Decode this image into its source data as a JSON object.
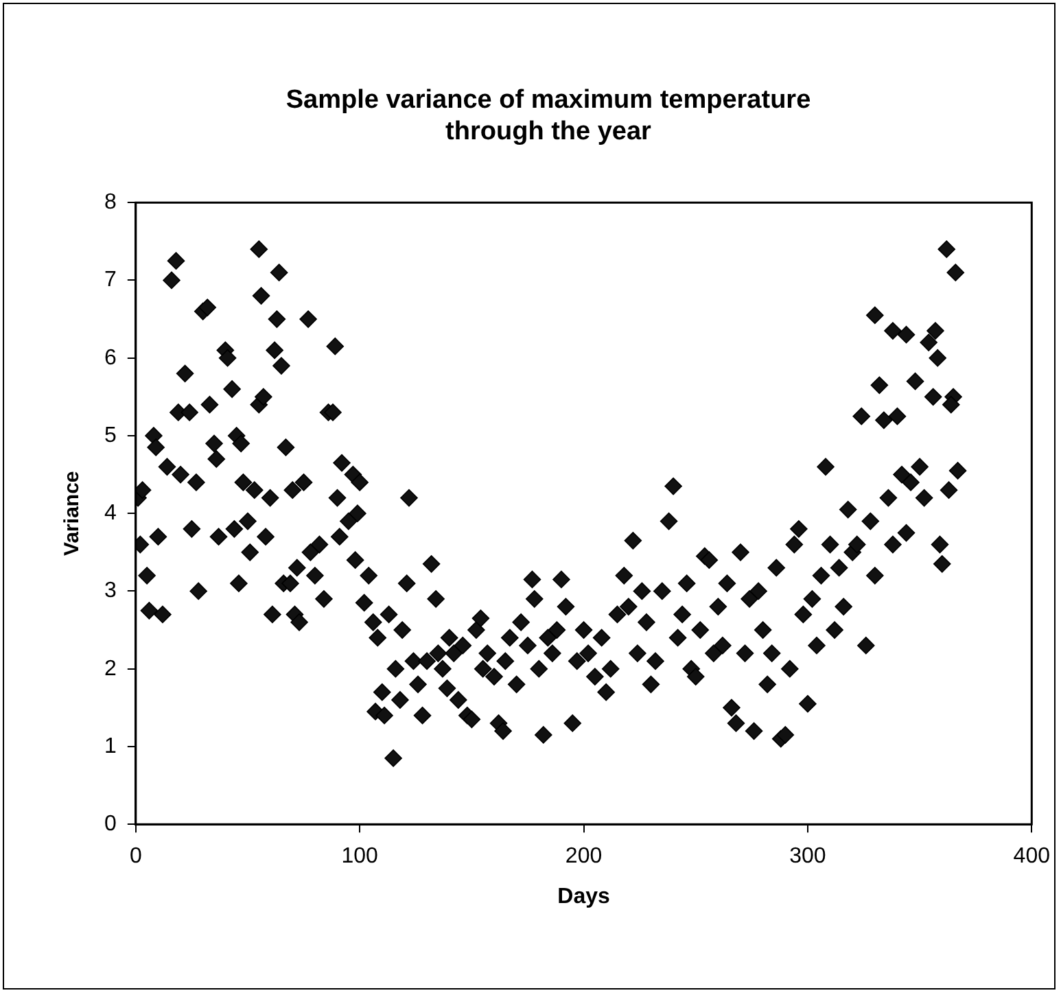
{
  "chart_data": {
    "type": "scatter",
    "title": "Sample variance of maximum temperature through the year",
    "xlabel": "Days",
    "ylabel": "Variance",
    "xlim": [
      0,
      400
    ],
    "xticks": [
      0,
      100,
      200,
      300,
      400
    ],
    "ylim": [
      0,
      8
    ],
    "yticks": [
      0,
      1,
      2,
      3,
      4,
      5,
      6,
      7,
      8
    ],
    "grid": false,
    "legend": false,
    "marker": "diamond",
    "series": [
      {
        "color": "#111111",
        "x": [
          1,
          3,
          2,
          5,
          6,
          8,
          9,
          10,
          12,
          14,
          16,
          18,
          19,
          20,
          22,
          24,
          25,
          27,
          28,
          30,
          32,
          33,
          35,
          36,
          37,
          40,
          41,
          43,
          44,
          45,
          46,
          47,
          48,
          50,
          51,
          53,
          55,
          55,
          56,
          57,
          58,
          60,
          61,
          62,
          63,
          64,
          65,
          66,
          67,
          69,
          70,
          71,
          72,
          73,
          75,
          77,
          78,
          80,
          82,
          84,
          86,
          88,
          89,
          90,
          91,
          92,
          95,
          97,
          98,
          99,
          100,
          102,
          104,
          106,
          107,
          108,
          110,
          111,
          113,
          115,
          116,
          118,
          119,
          121,
          122,
          124,
          126,
          128,
          130,
          132,
          134,
          135,
          137,
          139,
          140,
          142,
          144,
          146,
          148,
          150,
          152,
          154,
          155,
          157,
          160,
          162,
          164,
          165,
          167,
          170,
          172,
          175,
          177,
          178,
          180,
          182,
          184,
          186,
          188,
          190,
          192,
          195,
          197,
          200,
          202,
          205,
          208,
          210,
          212,
          215,
          218,
          220,
          222,
          224,
          226,
          228,
          230,
          232,
          235,
          238,
          240,
          242,
          244,
          246,
          248,
          250,
          252,
          254,
          256,
          258,
          260,
          262,
          264,
          266,
          268,
          270,
          272,
          274,
          276,
          278,
          280,
          282,
          284,
          286,
          288,
          290,
          292,
          294,
          296,
          298,
          300,
          302,
          304,
          306,
          308,
          310,
          312,
          314,
          316,
          318,
          320,
          322,
          324,
          326,
          328,
          330,
          332,
          334,
          336,
          338,
          340,
          342,
          344,
          346,
          348,
          350,
          352,
          354,
          356,
          357,
          358,
          359,
          360,
          362,
          363,
          365,
          366,
          367,
          364,
          344,
          338,
          330
        ],
        "values": [
          4.2,
          4.3,
          3.6,
          3.2,
          2.75,
          5.0,
          4.85,
          3.7,
          2.7,
          4.6,
          7.0,
          7.25,
          5.3,
          4.5,
          5.8,
          5.3,
          3.8,
          4.4,
          3.0,
          6.6,
          6.65,
          5.4,
          4.9,
          4.7,
          3.7,
          6.1,
          6.0,
          5.6,
          3.8,
          5.0,
          3.1,
          4.9,
          4.4,
          3.9,
          3.5,
          4.3,
          7.4,
          5.4,
          6.8,
          5.5,
          3.7,
          4.2,
          2.7,
          6.1,
          6.5,
          7.1,
          5.9,
          3.1,
          4.85,
          3.1,
          4.3,
          2.7,
          3.3,
          2.6,
          4.4,
          6.5,
          3.5,
          3.2,
          3.6,
          2.9,
          5.3,
          5.3,
          6.15,
          4.2,
          3.7,
          4.65,
          3.9,
          4.5,
          3.4,
          4.0,
          4.4,
          2.85,
          3.2,
          2.6,
          1.45,
          2.4,
          1.7,
          1.4,
          2.7,
          0.85,
          2.0,
          1.6,
          2.5,
          3.1,
          4.2,
          2.1,
          1.8,
          1.4,
          2.1,
          3.35,
          2.9,
          2.2,
          2.0,
          1.75,
          2.4,
          2.2,
          1.6,
          2.3,
          1.4,
          1.35,
          2.5,
          2.65,
          2.0,
          2.2,
          1.9,
          1.3,
          1.2,
          2.1,
          2.4,
          1.8,
          2.6,
          2.3,
          3.15,
          2.9,
          2.0,
          1.15,
          2.4,
          2.2,
          2.5,
          3.15,
          2.8,
          1.3,
          2.1,
          2.5,
          2.2,
          1.9,
          2.4,
          1.7,
          2.0,
          2.7,
          3.2,
          2.8,
          3.65,
          2.2,
          3.0,
          2.6,
          1.8,
          2.1,
          3.0,
          3.9,
          4.35,
          2.4,
          2.7,
          3.1,
          2.0,
          1.9,
          2.5,
          3.45,
          3.4,
          2.2,
          2.8,
          2.3,
          3.1,
          1.5,
          1.3,
          3.5,
          2.2,
          2.9,
          1.2,
          3.0,
          2.5,
          1.8,
          2.2,
          3.3,
          1.1,
          1.15,
          2.0,
          3.6,
          3.8,
          2.7,
          1.55,
          2.9,
          2.3,
          3.2,
          4.6,
          3.6,
          2.5,
          3.3,
          2.8,
          4.05,
          3.5,
          3.6,
          5.25,
          2.3,
          3.9,
          6.55,
          5.65,
          5.2,
          4.2,
          6.35,
          5.25,
          4.5,
          6.3,
          4.4,
          5.7,
          4.6,
          4.2,
          6.2,
          5.5,
          6.35,
          6.0,
          3.6,
          3.35,
          7.4,
          4.3,
          5.5,
          7.1,
          4.55,
          5.4,
          3.75,
          3.6,
          3.2
        ]
      }
    ]
  }
}
